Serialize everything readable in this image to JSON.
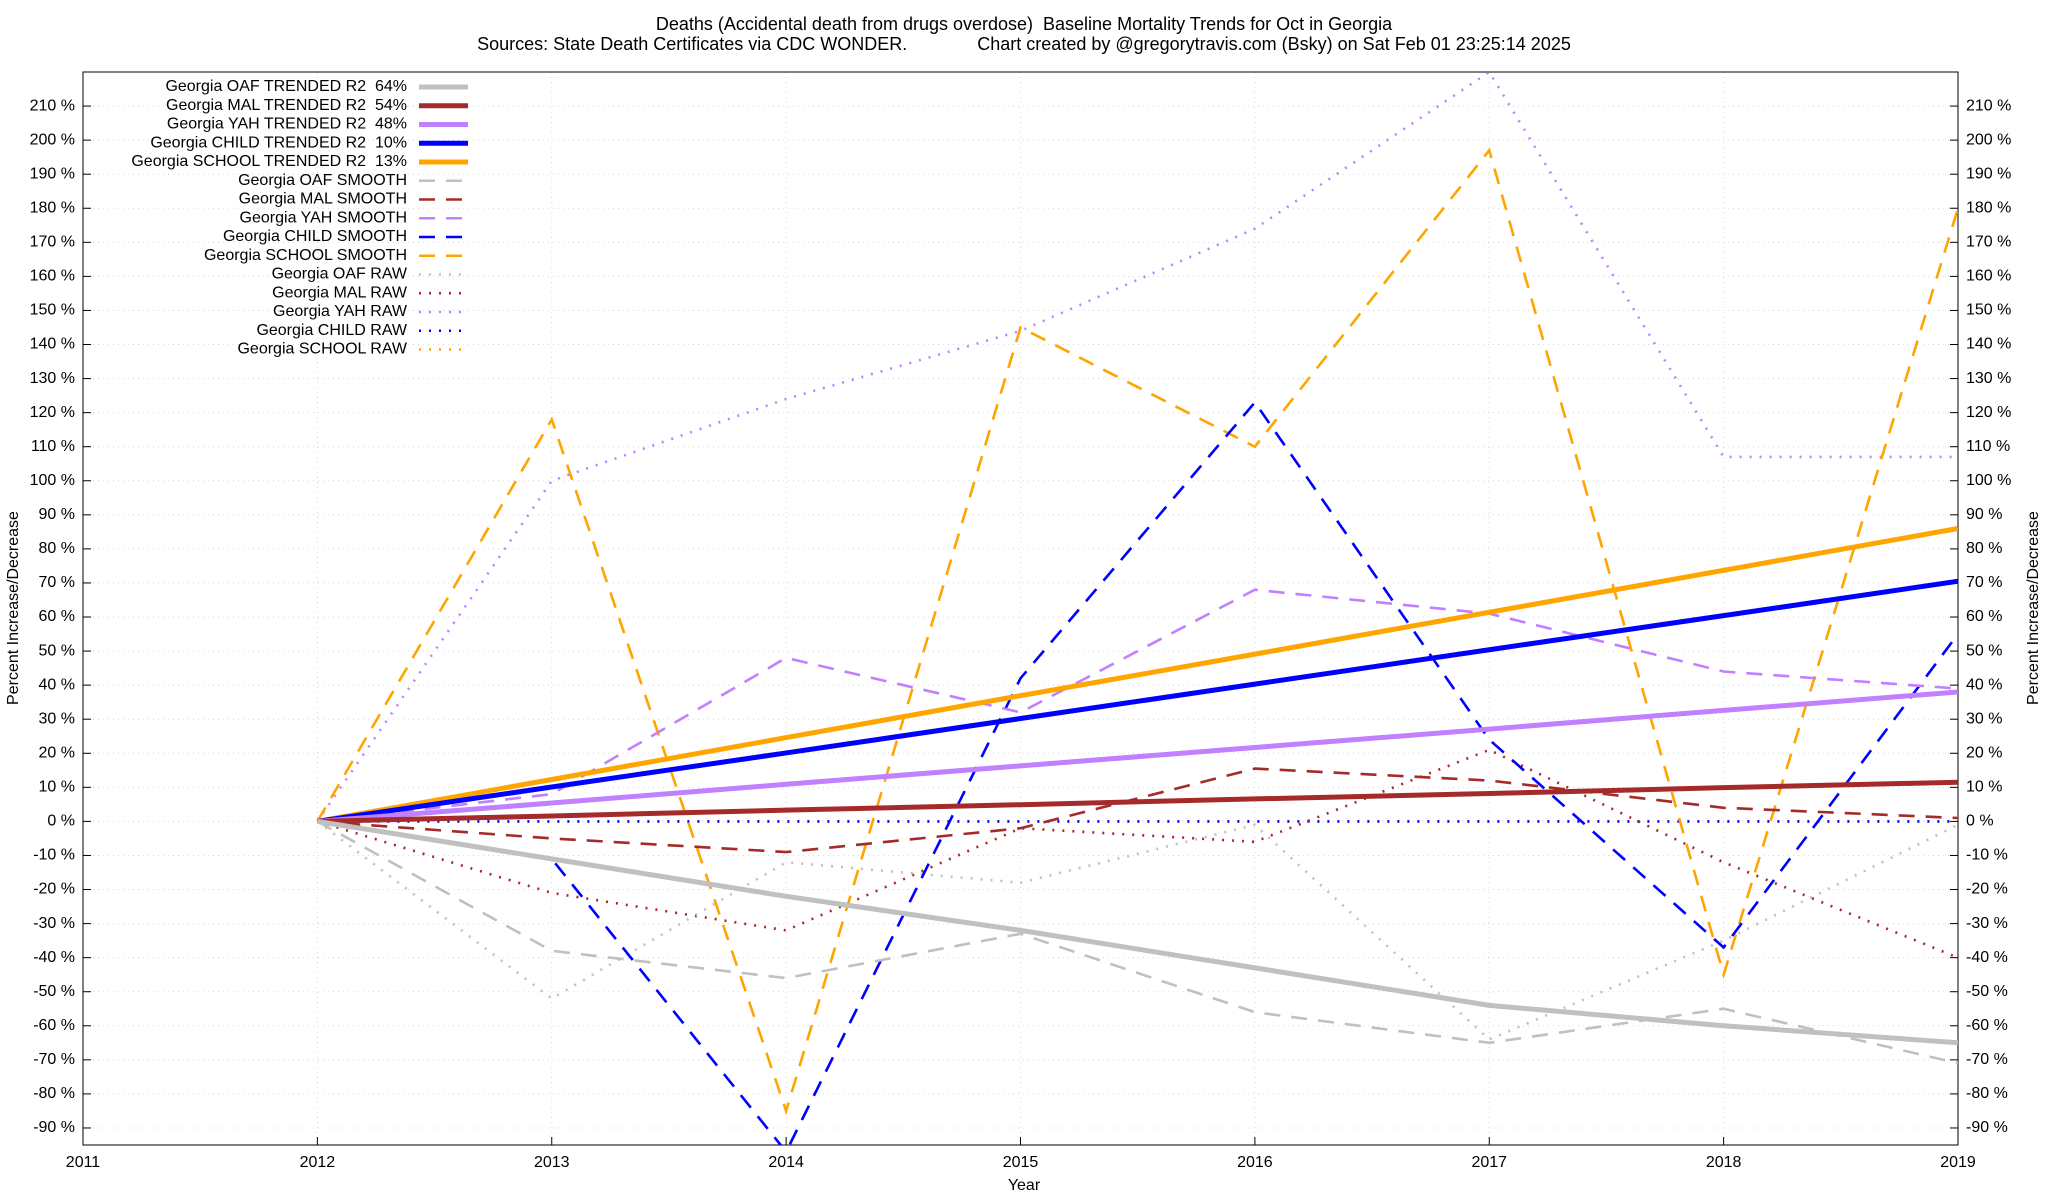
{
  "chart_data": {
    "type": "line",
    "title": "Deaths (Accidental death from drugs overdose)  Baseline Mortality Trends for Oct in Georgia",
    "subtitle": "Sources: State Death Certificates via CDC WONDER.              Chart created by @gregorytravis.com (Bsky) on Sat Feb 01 23:25:14 2025",
    "xlabel": "Year",
    "ylabel": "Percent Increase/Decrease",
    "y2label": "Percent Increase/Decrease",
    "x": [
      2012,
      2013,
      2014,
      2015,
      2016,
      2017,
      2018,
      2019
    ],
    "xlim": [
      2011,
      2019
    ],
    "xticks": [
      2011,
      2012,
      2013,
      2014,
      2015,
      2016,
      2017,
      2018,
      2019
    ],
    "ylim": [
      -95,
      220
    ],
    "yticks": [
      {
        "value": -90,
        "label": "-90 %"
      },
      {
        "value": -80,
        "label": "-80 %"
      },
      {
        "value": -70,
        "label": "-70 %"
      },
      {
        "value": -60,
        "label": "-60 %"
      },
      {
        "value": -50,
        "label": "-50 %"
      },
      {
        "value": -40,
        "label": "-40 %"
      },
      {
        "value": -30,
        "label": "-30 %"
      },
      {
        "value": -20,
        "label": "-20 %"
      },
      {
        "value": -10,
        "label": "-10 %"
      },
      {
        "value": 0,
        "label": "0 %"
      },
      {
        "value": 10,
        "label": "10 %"
      },
      {
        "value": 20,
        "label": "20 %"
      },
      {
        "value": 30,
        "label": "30 %"
      },
      {
        "value": 40,
        "label": "40 %"
      },
      {
        "value": 50,
        "label": "50 %"
      },
      {
        "value": 60,
        "label": "60 %"
      },
      {
        "value": 70,
        "label": "70 %"
      },
      {
        "value": 80,
        "label": "80 %"
      },
      {
        "value": 90,
        "label": "90 %"
      },
      {
        "value": 100,
        "label": "100 %"
      },
      {
        "value": 110,
        "label": "110 %"
      },
      {
        "value": 120,
        "label": "120 %"
      },
      {
        "value": 130,
        "label": "130 %"
      },
      {
        "value": 140,
        "label": "140 %"
      },
      {
        "value": 150,
        "label": "150 %"
      },
      {
        "value": 160,
        "label": "160 %"
      },
      {
        "value": 170,
        "label": "170 %"
      },
      {
        "value": 180,
        "label": "180 %"
      },
      {
        "value": 190,
        "label": "190 %"
      },
      {
        "value": 200,
        "label": "200 %"
      },
      {
        "value": 210,
        "label": "210 %"
      }
    ],
    "grid": true,
    "legend": "top-left",
    "series": [
      {
        "name": "Georgia OAF TRENDED R2  64%",
        "color": "#c0c0c0",
        "style": "solid",
        "values": [
          0,
          -11,
          -22,
          -32,
          -43,
          -54,
          -60,
          -65
        ]
      },
      {
        "name": "Georgia MAL TRENDED R2  54%",
        "color": "#a52a2a",
        "style": "solid",
        "values": [
          0,
          1.6,
          3.3,
          4.9,
          6.6,
          8.2,
          9.9,
          11.5
        ]
      },
      {
        "name": "Georgia YAH TRENDED R2  48%",
        "color": "#c080ff",
        "style": "solid",
        "values": [
          0,
          5.4,
          10.9,
          16.3,
          21.7,
          27.1,
          32.6,
          38
        ]
      },
      {
        "name": "Georgia CHILD TRENDED R2  10%",
        "color": "#0000ff",
        "style": "solid",
        "values": [
          0,
          10.1,
          20.1,
          30.2,
          40.3,
          50.4,
          60.4,
          70.5
        ]
      },
      {
        "name": "Georgia SCHOOL TRENDED R2  13%",
        "color": "#ffa500",
        "style": "solid",
        "values": [
          0,
          12.3,
          24.6,
          36.9,
          49.1,
          61.4,
          73.7,
          86
        ]
      },
      {
        "name": "Georgia OAF SMOOTH",
        "color": "#c0c0c0",
        "style": "dash",
        "values": [
          0,
          -38,
          -46,
          -33,
          -56,
          -65,
          -55,
          -71
        ]
      },
      {
        "name": "Georgia MAL SMOOTH",
        "color": "#a52a2a",
        "style": "dash",
        "values": [
          0,
          -5,
          -9,
          -2,
          15.5,
          12,
          4,
          1
        ]
      },
      {
        "name": "Georgia YAH SMOOTH",
        "color": "#c080ff",
        "style": "dash",
        "values": [
          0,
          8,
          48,
          32,
          68,
          61,
          44,
          39
        ]
      },
      {
        "name": "Georgia CHILD SMOOTH",
        "color": "#0000ff",
        "style": "dash",
        "values": [
          0,
          -11,
          -97,
          42,
          123,
          24,
          -37,
          55
        ]
      },
      {
        "name": "Georgia SCHOOL SMOOTH",
        "color": "#ffa500",
        "style": "dash",
        "values": [
          0,
          118,
          -85,
          145,
          110,
          197,
          -45,
          180
        ]
      },
      {
        "name": "Georgia OAF RAW",
        "color": "#c0c0c0",
        "style": "dot",
        "values": [
          0,
          -52,
          -12,
          -18,
          -1,
          -64,
          -35,
          -1
        ]
      },
      {
        "name": "Georgia MAL RAW",
        "color": "#a52a2a",
        "style": "dot",
        "values": [
          0,
          -21,
          -32,
          -2,
          -6,
          21,
          -12,
          -40
        ]
      },
      {
        "name": "Georgia YAH RAW",
        "color": "#c080ff",
        "style": "dot",
        "values": [
          0,
          100,
          124,
          144,
          174,
          220,
          107,
          107
        ]
      },
      {
        "name": "Georgia CHILD RAW",
        "color": "#0000ff",
        "style": "dot",
        "values": [
          0,
          0,
          0,
          0,
          0,
          0,
          0,
          0
        ]
      },
      {
        "name": "Georgia SCHOOL RAW",
        "color": "#ffa500",
        "style": "dot",
        "values": [
          0,
          0,
          0,
          0,
          0,
          0,
          0,
          0
        ]
      }
    ]
  }
}
